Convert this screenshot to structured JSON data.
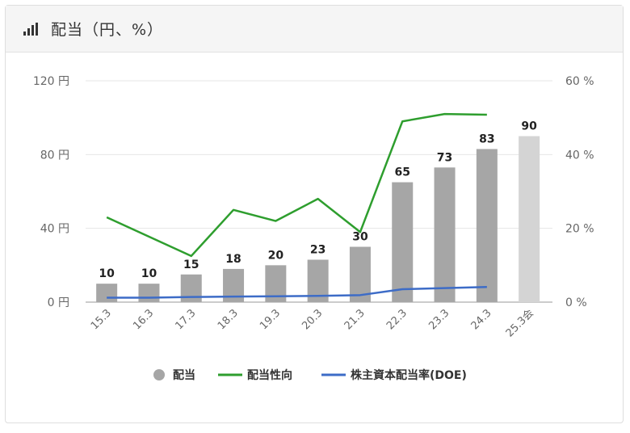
{
  "header": {
    "title": "配当（円、%）",
    "icon": "bar-chart-signal-icon"
  },
  "chart_data": {
    "type": "bar",
    "categories": [
      "15.3",
      "16.3",
      "17.3",
      "18.3",
      "19.3",
      "20.3",
      "21.3",
      "22.3",
      "23.3",
      "24.3",
      "25.3会"
    ],
    "series": [
      {
        "name": "配当",
        "type": "bar",
        "axis": "left",
        "values": [
          10,
          10,
          15,
          18,
          20,
          23,
          30,
          65,
          73,
          83,
          90
        ],
        "color": "#a6a6a6",
        "forecast_color": "#d4d4d4"
      },
      {
        "name": "配当性向",
        "type": "line",
        "axis": "right",
        "values": [
          23,
          null,
          12.5,
          25,
          22,
          28,
          19,
          49,
          51,
          50.8,
          null
        ],
        "color": "#2e9e2e"
      },
      {
        "name": "株主資本配当率(DOE)",
        "type": "line",
        "axis": "right",
        "values": [
          1.2,
          1.2,
          1.4,
          1.5,
          1.6,
          1.7,
          1.9,
          3.5,
          3.8,
          4.1,
          null
        ],
        "color": "#3d6cc7"
      }
    ],
    "y_left": {
      "ylim": [
        0,
        120
      ],
      "ticks": [
        0,
        40,
        80,
        120
      ],
      "unit": "円"
    },
    "y_right": {
      "ylim": [
        0,
        60
      ],
      "ticks": [
        0,
        20,
        40,
        60
      ],
      "unit": "%"
    },
    "grid": true,
    "legend_position": "bottom",
    "data_labels": true
  }
}
